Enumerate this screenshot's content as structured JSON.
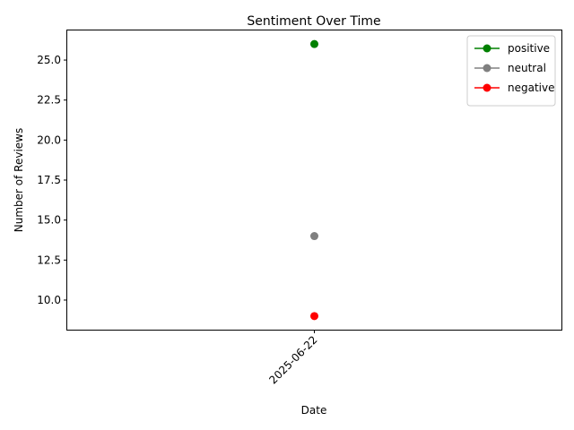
{
  "chart_data": {
    "type": "line",
    "title": "Sentiment Over Time",
    "xlabel": "Date",
    "ylabel": "Number of Reviews",
    "x": [
      "2025-06-22"
    ],
    "series": [
      {
        "name": "positive",
        "values": [
          26
        ],
        "color": "#008000"
      },
      {
        "name": "neutral",
        "values": [
          14
        ],
        "color": "#808080"
      },
      {
        "name": "negative",
        "values": [
          9
        ],
        "color": "#ff0000"
      }
    ],
    "ylim": [
      8.15,
      26.85
    ],
    "yticks": [
      10.0,
      12.5,
      15.0,
      17.5,
      20.0,
      22.5,
      25.0
    ],
    "ytick_labels": [
      "10.0",
      "12.5",
      "15.0",
      "17.5",
      "20.0",
      "22.5",
      "25.0"
    ],
    "xtick_rotation": 45,
    "grid": false,
    "legend_position": "top-right",
    "markers": true
  }
}
